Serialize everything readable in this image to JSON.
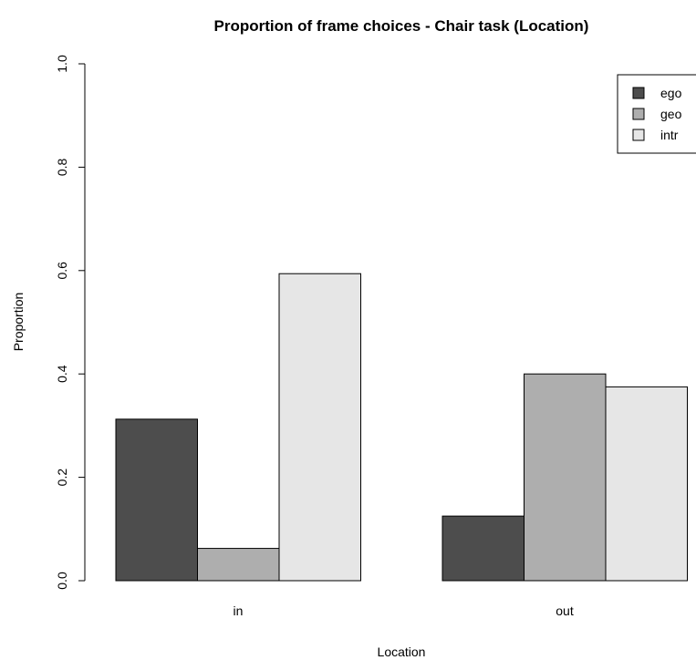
{
  "chart_data": {
    "type": "bar",
    "title": "Proportion of frame choices - Chair task (Location)",
    "xlabel": "Location",
    "ylabel": "Proportion",
    "categories": [
      "in",
      "out"
    ],
    "series": [
      {
        "name": "ego",
        "color": "#4d4d4d",
        "values": [
          0.3125,
          0.125
        ]
      },
      {
        "name": "geo",
        "color": "#aeaeae",
        "values": [
          0.0625,
          0.4
        ]
      },
      {
        "name": "intr",
        "color": "#e6e6e6",
        "values": [
          0.594,
          0.375
        ]
      }
    ],
    "ylim": [
      0,
      1
    ],
    "yticks": [
      "0.0",
      "0.2",
      "0.4",
      "0.6",
      "0.8",
      "1.0"
    ],
    "grid": false,
    "legend_position": "top-right"
  }
}
